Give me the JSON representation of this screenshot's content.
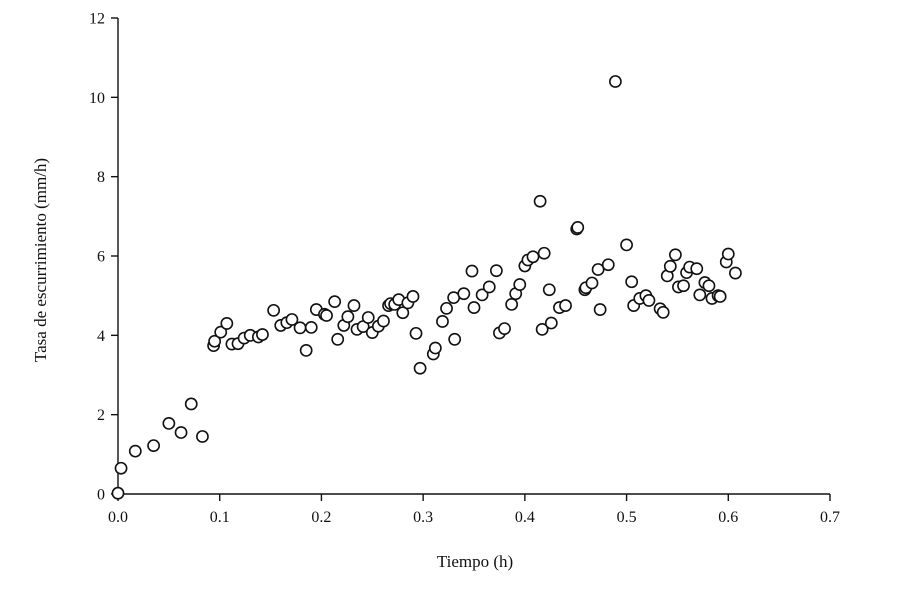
{
  "chart_data": {
    "type": "scatter",
    "title": "",
    "xlabel": "Tiempo (h)",
    "ylabel": "Tasa de escurrimiento (mm/h)",
    "xlim": [
      0,
      0.7
    ],
    "ylim": [
      0,
      12
    ],
    "xticks": [
      "0.0",
      "0.1",
      "0.2",
      "0.3",
      "0.4",
      "0.5",
      "0.6",
      "0.7"
    ],
    "yticks": [
      "0",
      "2",
      "4",
      "6",
      "8",
      "10",
      "12"
    ],
    "grid": false,
    "legend": "none",
    "series": [
      {
        "name": "Tasa de escurrimiento",
        "points": [
          [
            0.0,
            0.02
          ],
          [
            0.003,
            0.65
          ],
          [
            0.017,
            1.08
          ],
          [
            0.035,
            1.22
          ],
          [
            0.05,
            1.78
          ],
          [
            0.062,
            1.55
          ],
          [
            0.072,
            2.27
          ],
          [
            0.083,
            1.45
          ],
          [
            0.094,
            3.74
          ],
          [
            0.095,
            3.85
          ],
          [
            0.101,
            4.08
          ],
          [
            0.107,
            4.3
          ],
          [
            0.112,
            3.78
          ],
          [
            0.118,
            3.79
          ],
          [
            0.124,
            3.93
          ],
          [
            0.13,
            4.0
          ],
          [
            0.138,
            3.96
          ],
          [
            0.142,
            4.02
          ],
          [
            0.153,
            4.63
          ],
          [
            0.16,
            4.25
          ],
          [
            0.166,
            4.32
          ],
          [
            0.171,
            4.4
          ],
          [
            0.179,
            4.19
          ],
          [
            0.185,
            3.62
          ],
          [
            0.19,
            4.2
          ],
          [
            0.195,
            4.65
          ],
          [
            0.203,
            4.53
          ],
          [
            0.205,
            4.5
          ],
          [
            0.213,
            4.85
          ],
          [
            0.216,
            3.9
          ],
          [
            0.222,
            4.25
          ],
          [
            0.226,
            4.47
          ],
          [
            0.232,
            4.75
          ],
          [
            0.235,
            4.15
          ],
          [
            0.241,
            4.22
          ],
          [
            0.246,
            4.45
          ],
          [
            0.25,
            4.07
          ],
          [
            0.256,
            4.23
          ],
          [
            0.261,
            4.36
          ],
          [
            0.266,
            4.75
          ],
          [
            0.268,
            4.8
          ],
          [
            0.272,
            4.78
          ],
          [
            0.276,
            4.9
          ],
          [
            0.28,
            4.57
          ],
          [
            0.285,
            4.82
          ],
          [
            0.29,
            4.98
          ],
          [
            0.293,
            4.05
          ],
          [
            0.297,
            3.17
          ],
          [
            0.31,
            3.53
          ],
          [
            0.312,
            3.68
          ],
          [
            0.319,
            4.35
          ],
          [
            0.323,
            4.68
          ],
          [
            0.33,
            4.95
          ],
          [
            0.331,
            3.9
          ],
          [
            0.34,
            5.05
          ],
          [
            0.348,
            5.62
          ],
          [
            0.35,
            4.7
          ],
          [
            0.358,
            5.02
          ],
          [
            0.365,
            5.22
          ],
          [
            0.372,
            5.63
          ],
          [
            0.375,
            4.06
          ],
          [
            0.38,
            4.17
          ],
          [
            0.387,
            4.78
          ],
          [
            0.391,
            5.05
          ],
          [
            0.395,
            5.28
          ],
          [
            0.4,
            5.75
          ],
          [
            0.403,
            5.9
          ],
          [
            0.408,
            5.98
          ],
          [
            0.415,
            7.38
          ],
          [
            0.417,
            4.15
          ],
          [
            0.419,
            6.07
          ],
          [
            0.424,
            5.15
          ],
          [
            0.426,
            4.31
          ],
          [
            0.434,
            4.7
          ],
          [
            0.44,
            4.75
          ],
          [
            0.451,
            6.68
          ],
          [
            0.452,
            6.72
          ],
          [
            0.459,
            5.15
          ],
          [
            0.46,
            5.2
          ],
          [
            0.466,
            5.32
          ],
          [
            0.472,
            5.66
          ],
          [
            0.474,
            4.65
          ],
          [
            0.482,
            5.78
          ],
          [
            0.489,
            10.4
          ],
          [
            0.5,
            6.28
          ],
          [
            0.505,
            5.35
          ],
          [
            0.507,
            4.75
          ],
          [
            0.513,
            4.93
          ],
          [
            0.519,
            5.0
          ],
          [
            0.522,
            4.88
          ],
          [
            0.533,
            4.67
          ],
          [
            0.536,
            4.58
          ],
          [
            0.54,
            5.5
          ],
          [
            0.543,
            5.74
          ],
          [
            0.548,
            6.03
          ],
          [
            0.551,
            5.22
          ],
          [
            0.556,
            5.25
          ],
          [
            0.559,
            5.58
          ],
          [
            0.562,
            5.72
          ],
          [
            0.569,
            5.68
          ],
          [
            0.572,
            5.02
          ],
          [
            0.577,
            5.33
          ],
          [
            0.581,
            5.25
          ],
          [
            0.584,
            4.93
          ],
          [
            0.59,
            5.0
          ],
          [
            0.592,
            4.98
          ],
          [
            0.598,
            5.85
          ],
          [
            0.6,
            6.05
          ],
          [
            0.607,
            5.57
          ]
        ]
      }
    ]
  }
}
